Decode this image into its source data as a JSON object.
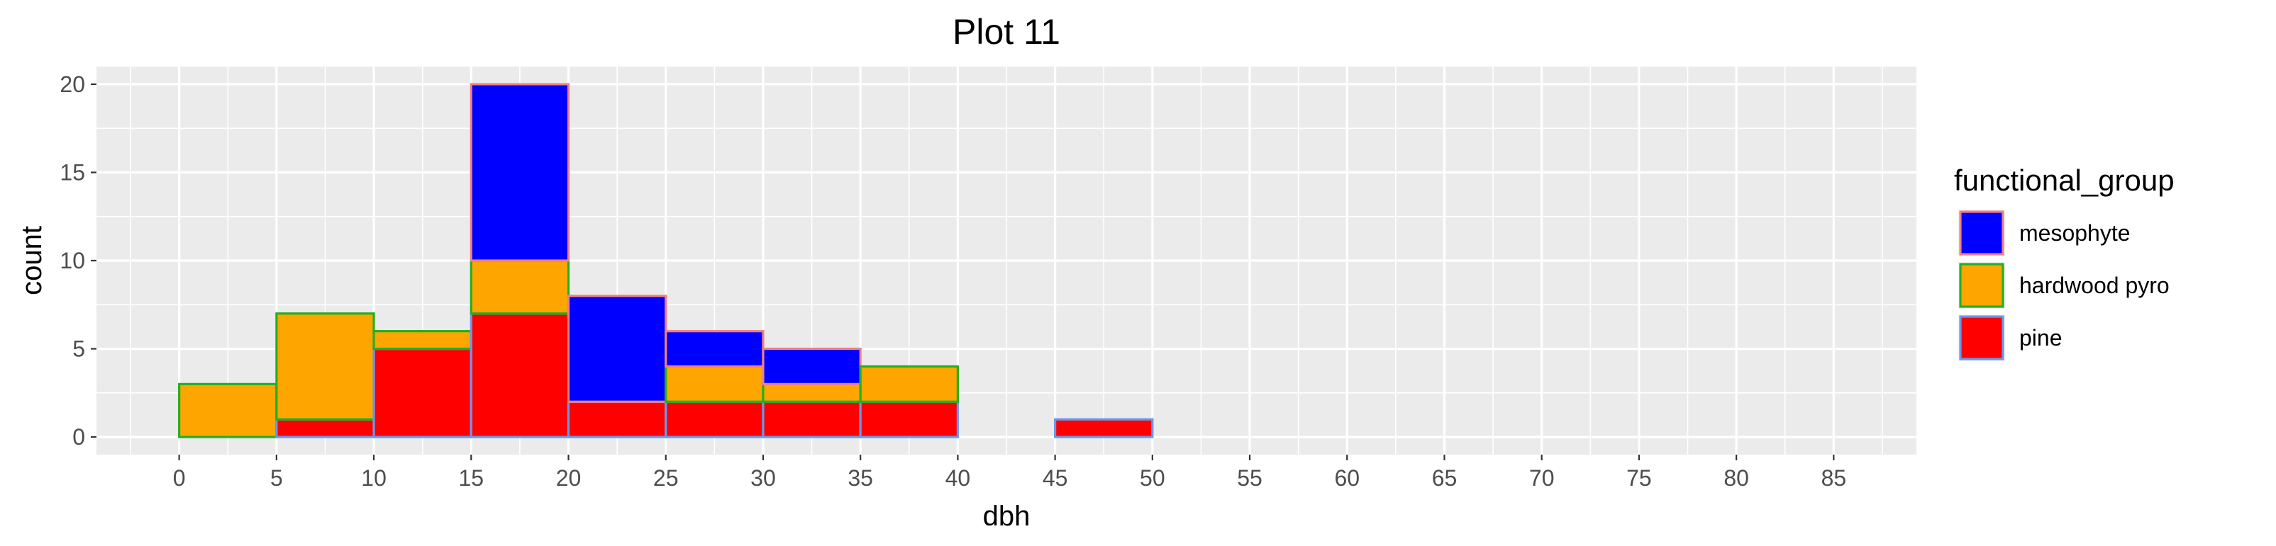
{
  "chart_data": {
    "type": "bar",
    "title": "Plot 11",
    "xlabel": "dbh",
    "ylabel": "count",
    "bins": [
      [
        0,
        5
      ],
      [
        5,
        10
      ],
      [
        10,
        15
      ],
      [
        15,
        20
      ],
      [
        20,
        25
      ],
      [
        25,
        30
      ],
      [
        30,
        35
      ],
      [
        35,
        40
      ],
      [
        40,
        45
      ],
      [
        45,
        50
      ],
      [
        50,
        55
      ],
      [
        55,
        60
      ],
      [
        60,
        65
      ],
      [
        65,
        70
      ],
      [
        70,
        75
      ],
      [
        75,
        80
      ],
      [
        80,
        85
      ]
    ],
    "xlim": [
      -4.25,
      89.25
    ],
    "ylim": [
      -1,
      21
    ],
    "x_ticks": [
      "0",
      "5",
      "10",
      "15",
      "20",
      "25",
      "30",
      "35",
      "40",
      "45",
      "50",
      "55",
      "60",
      "65",
      "70",
      "75",
      "80",
      "85"
    ],
    "y_ticks": [
      "0",
      "5",
      "10",
      "15",
      "20"
    ],
    "stacking_order": [
      "pine",
      "hardwood pyro",
      "mesophyte"
    ],
    "series": [
      {
        "name": "mesophyte",
        "fill": "#0000ff",
        "outline": "#f08080",
        "values": [
          0,
          0,
          0,
          10,
          6,
          2,
          2,
          0,
          0,
          0,
          0,
          0,
          0,
          0,
          0,
          0,
          0
        ]
      },
      {
        "name": "hardwood pyro",
        "fill": "#ffa500",
        "outline": "#22b022",
        "values": [
          3,
          6,
          1,
          3,
          0,
          2,
          1,
          2,
          0,
          0,
          0,
          0,
          0,
          0,
          0,
          0,
          0
        ]
      },
      {
        "name": "pine",
        "fill": "#ff0000",
        "outline": "#6699ee",
        "values": [
          0,
          1,
          5,
          7,
          2,
          2,
          2,
          2,
          0,
          1,
          0,
          0,
          0,
          0,
          0,
          0,
          0
        ]
      }
    ],
    "legend": {
      "title": "functional_group",
      "position": "right",
      "entries": [
        "mesophyte",
        "hardwood pyro",
        "pine"
      ]
    },
    "grid": true,
    "panel_background": "#ebebeb",
    "gridline_color": "#ffffff"
  }
}
